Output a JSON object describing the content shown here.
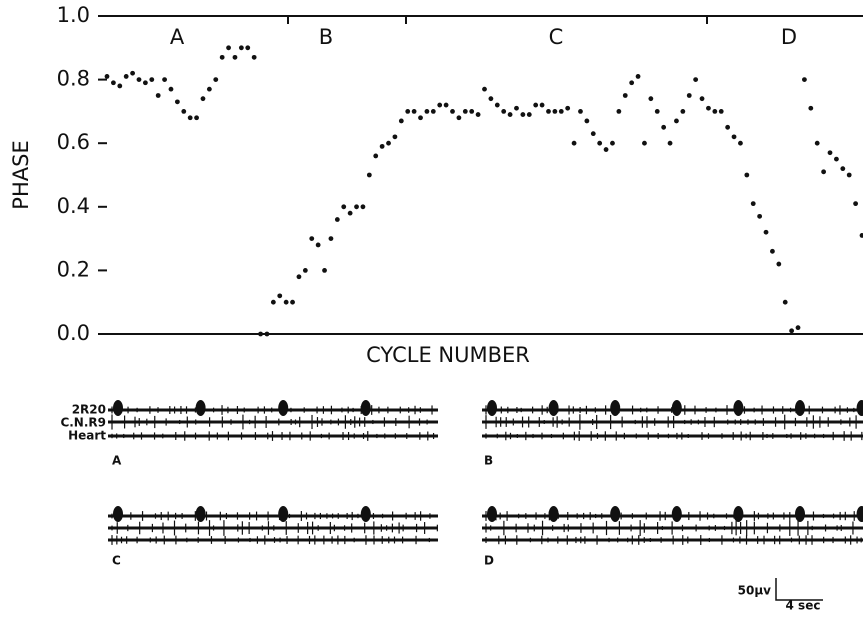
{
  "chart_data": {
    "type": "scatter",
    "ylabel": "PHASE",
    "xlabel": "CYCLE NUMBER",
    "annotations": [
      "A",
      "B",
      "C",
      "D"
    ],
    "color": "#111111",
    "xlim": [
      1,
      119
    ],
    "ylim": [
      0,
      1
    ],
    "yticks": [
      {
        "value": 0,
        "label": "0.0"
      },
      {
        "value": 0.2,
        "label": "0.2"
      },
      {
        "value": 0.4,
        "label": "0.4"
      },
      {
        "value": 0.6,
        "label": "0.6"
      },
      {
        "value": 0.8,
        "label": "0.8"
      },
      {
        "value": 1,
        "label": "1.0"
      }
    ],
    "x": [
      1,
      2,
      3,
      4,
      5,
      6,
      7,
      8,
      9,
      10,
      11,
      12,
      13,
      14,
      15,
      16,
      17,
      18,
      19,
      20,
      21,
      22,
      23,
      24,
      25,
      26,
      27,
      28,
      29,
      30,
      31,
      32,
      33,
      34,
      35,
      36,
      37,
      38,
      39,
      40,
      41,
      42,
      43,
      44,
      45,
      46,
      47,
      48,
      49,
      50,
      51,
      52,
      53,
      54,
      55,
      56,
      57,
      58,
      59,
      60,
      61,
      62,
      63,
      64,
      65,
      66,
      67,
      68,
      69,
      70,
      71,
      72,
      73,
      74,
      75,
      76,
      77,
      78,
      79,
      80,
      81,
      82,
      83,
      84,
      85,
      86,
      87,
      88,
      89,
      90,
      91,
      92,
      93,
      94,
      95,
      96,
      97,
      98,
      99,
      100,
      101,
      102,
      103,
      104,
      105,
      106,
      107,
      108,
      109,
      110,
      111,
      112,
      113,
      114,
      115,
      116,
      117,
      118,
      119
    ],
    "values": [
      0.81,
      0.79,
      0.78,
      0.81,
      0.82,
      0.8,
      0.79,
      0.8,
      0.75,
      0.8,
      0.77,
      0.73,
      0.7,
      0.68,
      0.68,
      0.74,
      0.77,
      0.8,
      0.87,
      0.9,
      0.87,
      0.9,
      0.9,
      0.87,
      0,
      0,
      0.1,
      0.12,
      0.1,
      0.1,
      0.18,
      0.2,
      0.3,
      0.28,
      0.2,
      0.3,
      0.36,
      0.4,
      0.38,
      0.4,
      0.4,
      0.5,
      0.56,
      0.59,
      0.6,
      0.62,
      0.67,
      0.7,
      0.7,
      0.68,
      0.7,
      0.7,
      0.72,
      0.72,
      0.7,
      0.68,
      0.7,
      0.7,
      0.69,
      0.77,
      0.74,
      0.72,
      0.7,
      0.69,
      0.71,
      0.69,
      0.69,
      0.72,
      0.72,
      0.7,
      0.7,
      0.7,
      0.71,
      0.6,
      0.7,
      0.67,
      0.63,
      0.6,
      0.58,
      0.6,
      0.7,
      0.75,
      0.79,
      0.81,
      0.6,
      0.74,
      0.7,
      0.65,
      0.6,
      0.67,
      0.7,
      0.75,
      0.8,
      0.74,
      0.71,
      0.7,
      0.7,
      0.65,
      0.62,
      0.6,
      0.5,
      0.41,
      0.37,
      0.32,
      0.26,
      0.22,
      0.1,
      0.01,
      0.02,
      0.8,
      0.71,
      0.6,
      0.51,
      0.57,
      0.55,
      0.52,
      0.5,
      0.41,
      0.31
    ]
  },
  "recordings": {
    "channels": [
      "2R20",
      "C.N.R9",
      "Heart"
    ],
    "panels": [
      "A",
      "B",
      "C",
      "D"
    ],
    "scale": {
      "voltage": "50µv",
      "time": "4 sec"
    }
  }
}
